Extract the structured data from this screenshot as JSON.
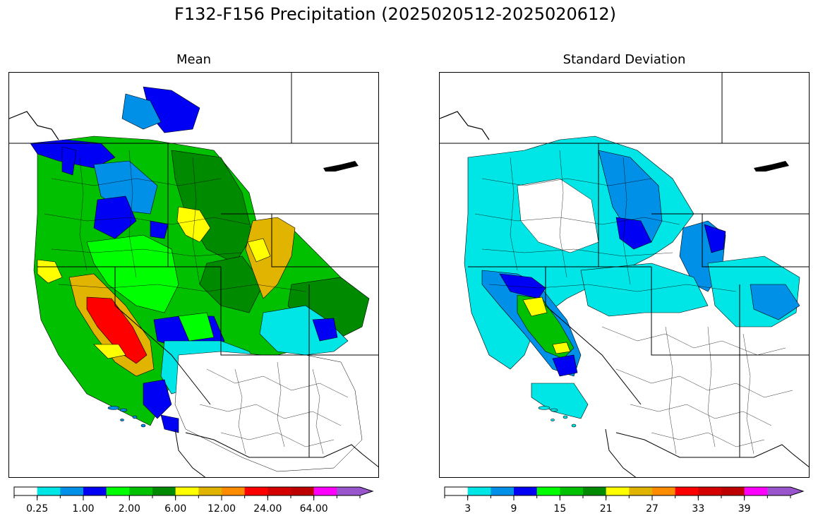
{
  "figure": {
    "title": "F132-F156 Precipitation (2025020512-2025020612)"
  },
  "panels": [
    {
      "title": "Mean",
      "colorbar": {
        "colors": [
          "#ffffff",
          "#00e5e5",
          "#0090e8",
          "#0000f5",
          "#00ff00",
          "#00c000",
          "#008a00",
          "#ffff00",
          "#e0b400",
          "#ff8c00",
          "#ff0000",
          "#d40000",
          "#bf0000",
          "#ff00ff",
          "#9955cc"
        ],
        "tick_labels": [
          "0.25",
          "1.00",
          "2.00",
          "6.00",
          "12.00",
          "24.00",
          "64.00"
        ],
        "extend": "max"
      }
    },
    {
      "title": "Standard Deviation",
      "colorbar": {
        "colors": [
          "#ffffff",
          "#00e5e5",
          "#0090e8",
          "#0000f5",
          "#00ff00",
          "#00c000",
          "#008a00",
          "#ffff00",
          "#e0b400",
          "#ff8c00",
          "#ff0000",
          "#d40000",
          "#bf0000",
          "#ff00ff",
          "#9955cc"
        ],
        "tick_labels": [
          "3",
          "9",
          "15",
          "21",
          "27",
          "33",
          "39"
        ],
        "extend": "max"
      }
    }
  ]
}
